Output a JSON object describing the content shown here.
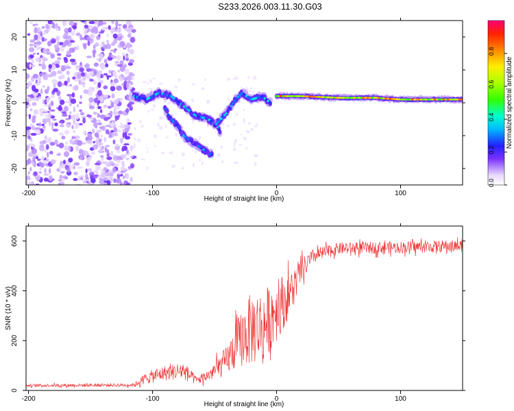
{
  "title": "S233.2026.003.11.30.G03",
  "chart_data": [
    {
      "type": "heatmap",
      "xlabel": "Height of straight line (km)",
      "ylabel": "Frequency (Hz)",
      "xlim": [
        -202,
        150
      ],
      "ylim": [
        -25,
        25
      ],
      "xticks": [
        -200,
        -100,
        0,
        100
      ],
      "yticks": [
        -20,
        -10,
        0,
        10,
        20
      ],
      "colorbar": {
        "label": "Normalized spectral amplitude",
        "range": [
          0,
          1
        ],
        "ticks": [
          0.0,
          0.2,
          0.4,
          0.6,
          0.8
        ]
      },
      "noise_region": {
        "x_from": -202,
        "x_to": -115,
        "amplitude": 0.15
      },
      "tracks": [
        {
          "name": "upper descending track",
          "points": [
            [
              -115,
              2
            ],
            [
              -105,
              1
            ],
            [
              -95,
              3
            ],
            [
              -85,
              2
            ],
            [
              -75,
              -1
            ],
            [
              -65,
              -4
            ],
            [
              -55,
              -5
            ],
            [
              -48,
              -7
            ],
            [
              -45,
              -9
            ]
          ],
          "amplitude": 0.3
        },
        {
          "name": "lower descending track",
          "points": [
            [
              -90,
              -2
            ],
            [
              -85,
              -5
            ],
            [
              -80,
              -7
            ],
            [
              -75,
              -10
            ],
            [
              -68,
              -12
            ],
            [
              -60,
              -14
            ],
            [
              -52,
              -16
            ]
          ],
          "amplitude": 0.25
        },
        {
          "name": "rising track",
          "points": [
            [
              -50,
              -7
            ],
            [
              -40,
              -3
            ],
            [
              -33,
              1
            ],
            [
              -28,
              3
            ],
            [
              -20,
              1
            ],
            [
              -12,
              2
            ],
            [
              -5,
              0
            ]
          ],
          "amplitude": 0.3
        },
        {
          "name": "carrier line",
          "points": [
            [
              0,
              2
            ],
            [
              20,
              2
            ],
            [
              50,
              1.5
            ],
            [
              80,
              1.5
            ],
            [
              100,
              1
            ],
            [
              150,
              1
            ]
          ],
          "amplitude": 0.9
        }
      ]
    },
    {
      "type": "line",
      "xlabel": "Height of straight line (km)",
      "ylabel": "SNR (10 * v/v)",
      "xlim": [
        -202,
        150
      ],
      "ylim": [
        0,
        660
      ],
      "xticks": [
        -200,
        -100,
        0,
        100
      ],
      "yticks": [
        0,
        200,
        400,
        600
      ],
      "series": [
        {
          "name": "SNR",
          "color": "#ee3333",
          "envelope": [
            {
              "x": -202,
              "mean": 20,
              "spread": 10
            },
            {
              "x": -115,
              "mean": 22,
              "spread": 12
            },
            {
              "x": -105,
              "mean": 50,
              "spread": 40
            },
            {
              "x": -90,
              "mean": 70,
              "spread": 50
            },
            {
              "x": -75,
              "mean": 80,
              "spread": 60
            },
            {
              "x": -65,
              "mean": 40,
              "spread": 30
            },
            {
              "x": -55,
              "mean": 60,
              "spread": 40
            },
            {
              "x": -40,
              "mean": 120,
              "spread": 100
            },
            {
              "x": -30,
              "mean": 200,
              "spread": 180
            },
            {
              "x": -20,
              "mean": 250,
              "spread": 250
            },
            {
              "x": -10,
              "mean": 260,
              "spread": 240
            },
            {
              "x": 0,
              "mean": 330,
              "spread": 220
            },
            {
              "x": 10,
              "mean": 380,
              "spread": 150
            },
            {
              "x": 20,
              "mean": 480,
              "spread": 80
            },
            {
              "x": 30,
              "mean": 540,
              "spread": 50
            },
            {
              "x": 50,
              "mean": 570,
              "spread": 40
            },
            {
              "x": 100,
              "mean": 575,
              "spread": 40
            },
            {
              "x": 150,
              "mean": 580,
              "spread": 40
            }
          ]
        }
      ]
    }
  ]
}
